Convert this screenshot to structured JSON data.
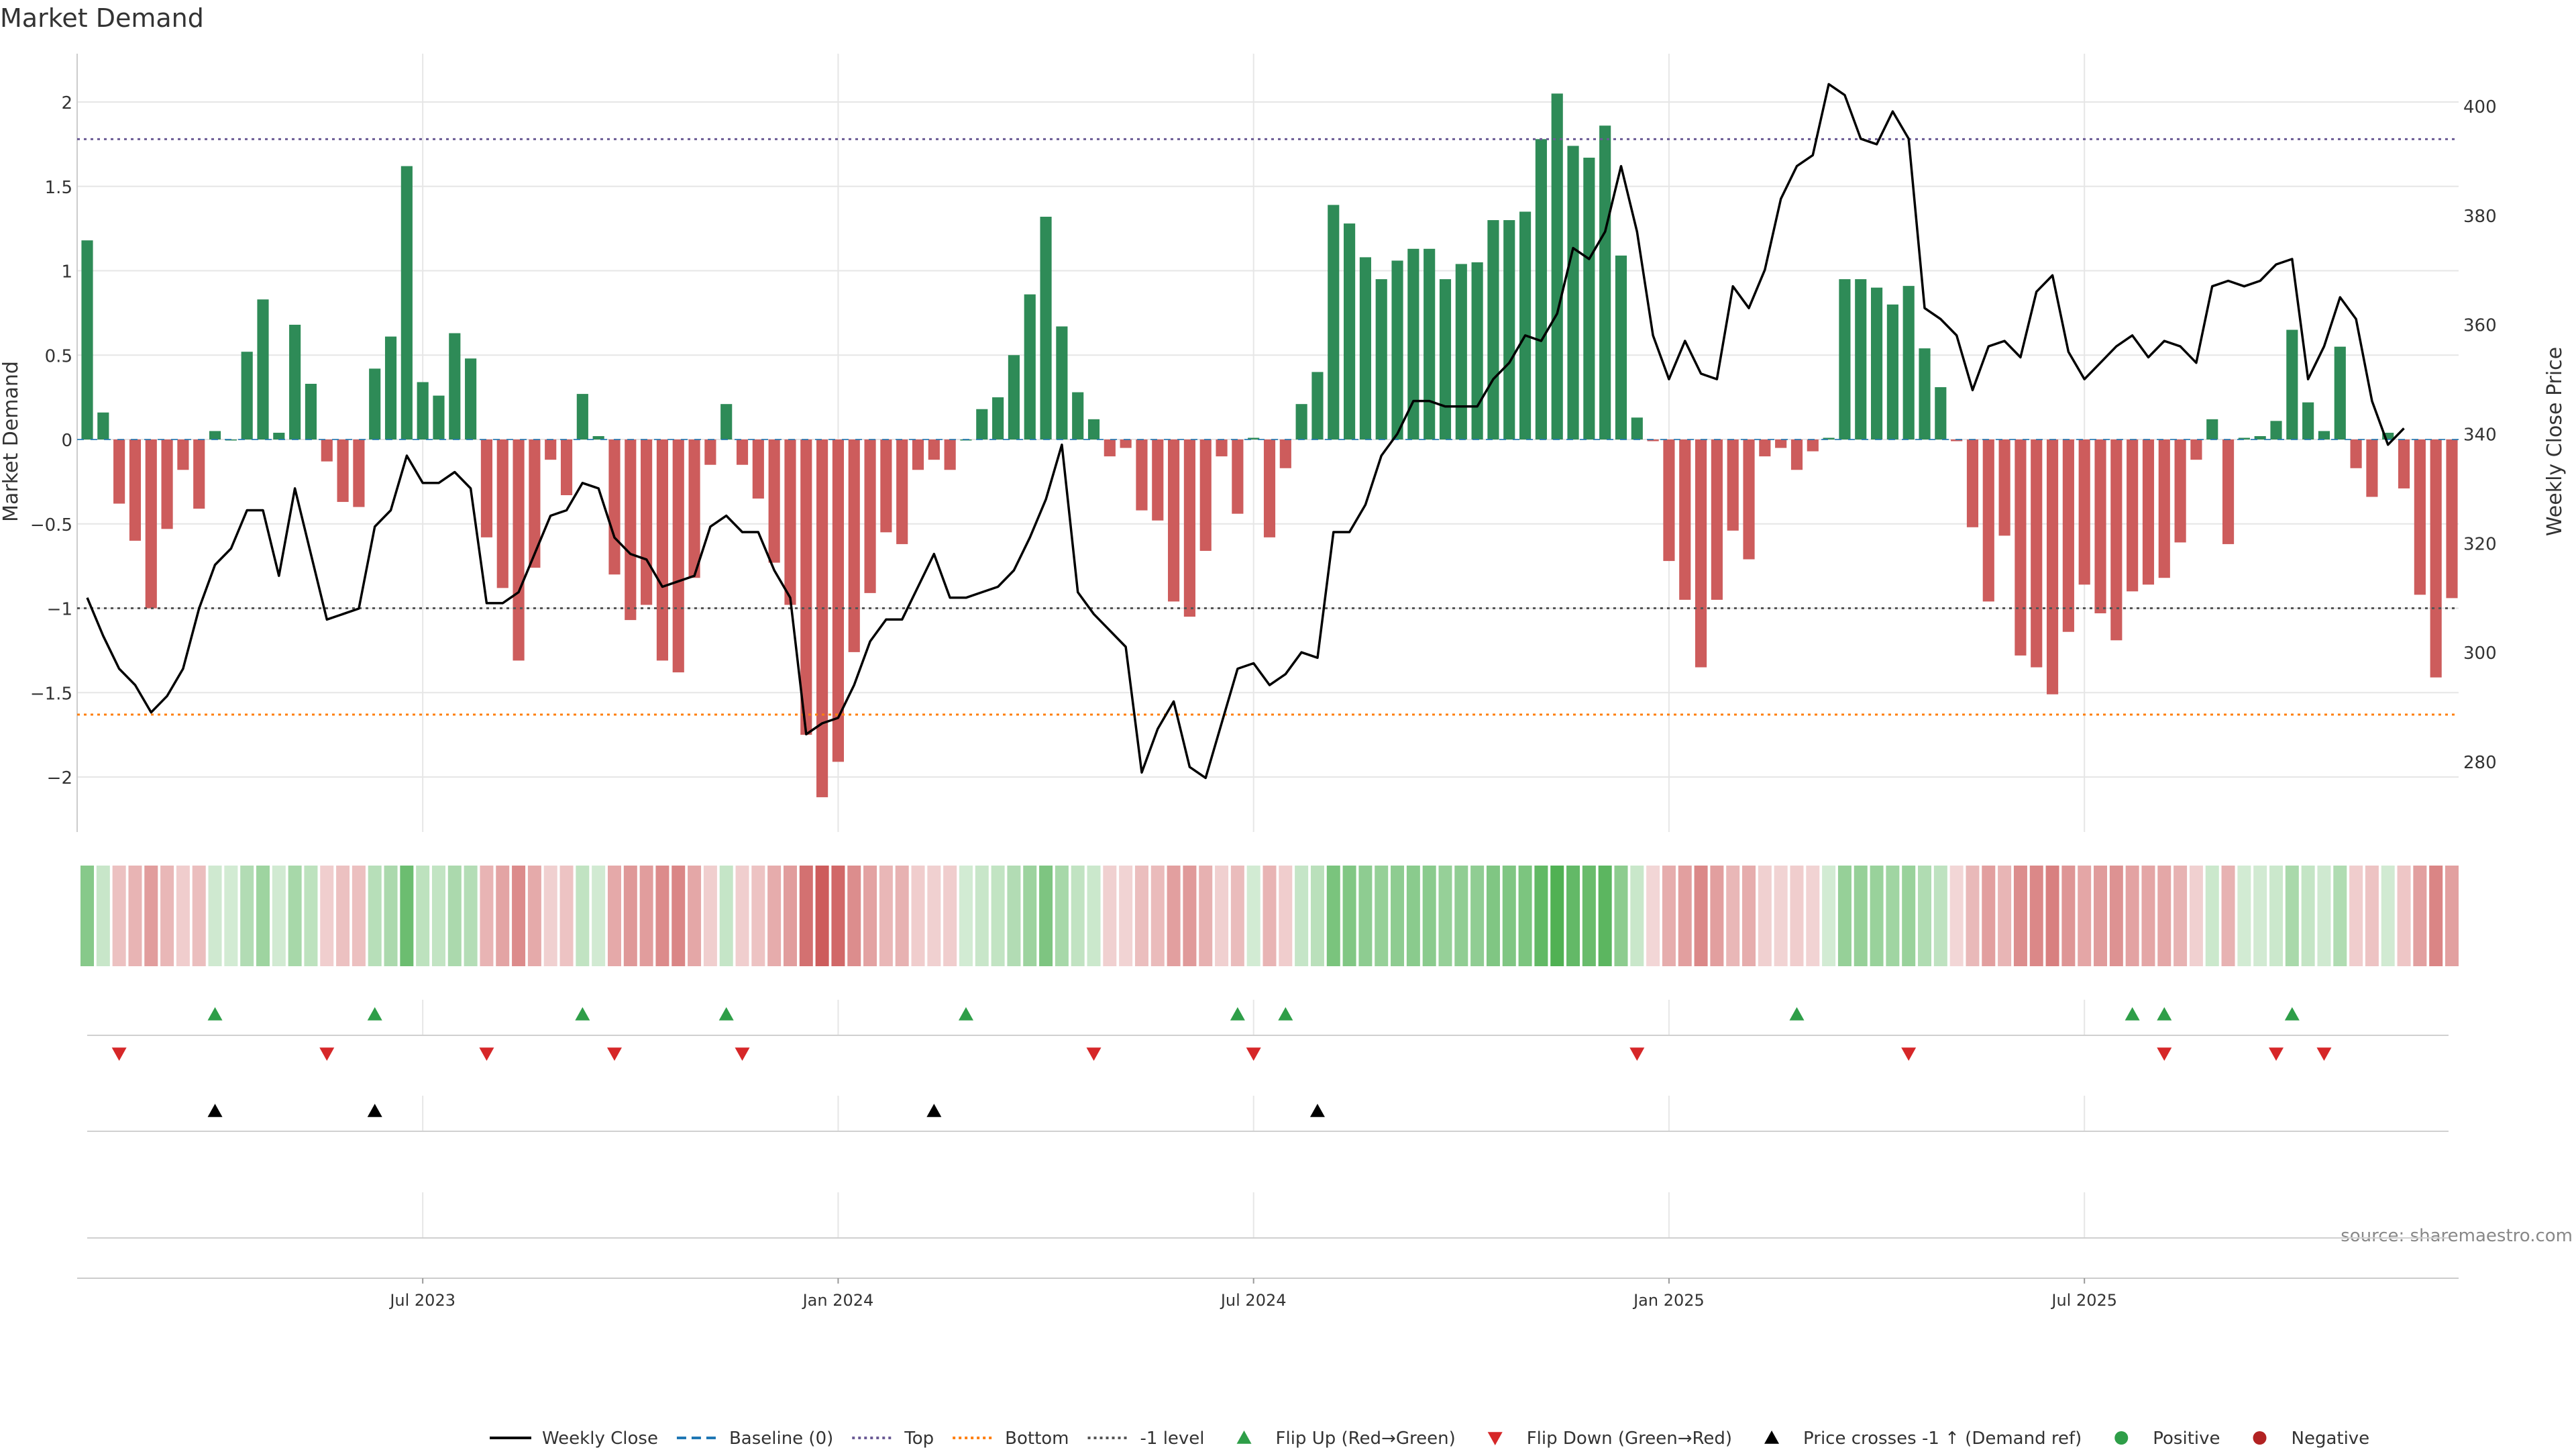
{
  "chart_data": {
    "type": "bar",
    "title": "Market Demand",
    "ylabel_left": "Market Demand",
    "ylabel_right": "Weekly Close Price",
    "ylim_left": [
      -2.3,
      2.3
    ],
    "ylim_right": [
      268,
      408
    ],
    "x_ticks": [
      {
        "label": "Jul 2023",
        "index": 21
      },
      {
        "label": "Jan 2024",
        "index": 47
      },
      {
        "label": "Jul 2024",
        "index": 73
      },
      {
        "label": "Jan 2025",
        "index": 99
      },
      {
        "label": "Jul 2025",
        "index": 125
      }
    ],
    "y_ticks_left": [
      {
        "label": "−2",
        "value": -2
      },
      {
        "label": "−1.5",
        "value": -1.5
      },
      {
        "label": "−1",
        "value": -1
      },
      {
        "label": "−0.5",
        "value": -0.5
      },
      {
        "label": "0",
        "value": 0
      },
      {
        "label": "0.5",
        "value": 0.5
      },
      {
        "label": "1",
        "value": 1
      },
      {
        "label": "1.5",
        "value": 1.5
      },
      {
        "label": "2",
        "value": 2
      }
    ],
    "y_ticks_right": [
      {
        "label": "280",
        "value": 280
      },
      {
        "label": "300",
        "value": 300
      },
      {
        "label": "320",
        "value": 320
      },
      {
        "label": "340",
        "value": 340
      },
      {
        "label": "360",
        "value": 360
      },
      {
        "label": "380",
        "value": 380
      },
      {
        "label": "400",
        "value": 400
      }
    ],
    "levels": {
      "top": 1.78,
      "bottom": -1.63,
      "minus_one": -1.0
    },
    "demand": [
      1.18,
      0.16,
      -0.38,
      -0.6,
      -1.0,
      -0.53,
      -0.18,
      -0.41,
      0.05,
      0,
      0.52,
      0.83,
      0.04,
      0.68,
      0.33,
      -0.13,
      -0.37,
      -0.4,
      0.42,
      0.61,
      1.62,
      0.34,
      0.26,
      0.63,
      0.48,
      -0.58,
      -0.88,
      -1.31,
      -0.76,
      -0.12,
      -0.33,
      0.27,
      0.02,
      -0.8,
      -1.07,
      -0.98,
      -1.31,
      -1.38,
      -0.82,
      -0.15,
      0.21,
      -0.15,
      -0.35,
      -0.73,
      -0.98,
      -1.75,
      -2.12,
      -1.91,
      -1.26,
      -0.91,
      -0.55,
      -0.62,
      -0.18,
      -0.12,
      -0.18,
      0,
      0.18,
      0.25,
      0.5,
      0.86,
      1.32,
      0.67,
      0.28,
      0.12,
      -0.1,
      -0.05,
      -0.42,
      -0.48,
      -0.96,
      -1.05,
      -0.66,
      -0.1,
      -0.44,
      0.01,
      -0.58,
      -0.17,
      0.21,
      0.4,
      1.39,
      1.28,
      1.08,
      0.95,
      1.06,
      1.13,
      1.13,
      0.95,
      1.04,
      1.05,
      1.3,
      1.3,
      1.35,
      1.78,
      2.05,
      1.74,
      1.67,
      1.86,
      1.09,
      0.13,
      -0.01,
      -0.72,
      -0.95,
      -1.35,
      -0.95,
      -0.54,
      -0.71,
      -0.1,
      -0.05,
      -0.18,
      -0.07,
      0.01,
      0.95,
      0.95,
      0.9,
      0.8,
      0.91,
      0.54,
      0.31,
      -0.01,
      -0.52,
      -0.96,
      -0.57,
      -1.28,
      -1.35,
      -1.51,
      -1.14,
      -0.86,
      -1.03,
      -1.19,
      -0.9,
      -0.86,
      -0.82,
      -0.61,
      -0.12,
      0.12,
      -0.62,
      0.01,
      0.02,
      0.11,
      0.65,
      0.22,
      0.05,
      0.55,
      -0.17,
      -0.34,
      0.04,
      -0.29,
      -0.92,
      -1.41,
      -0.94
    ],
    "close": [
      310,
      303,
      297,
      294,
      289,
      292,
      297,
      308,
      316,
      319,
      326,
      326,
      314,
      330,
      318,
      306,
      307,
      308,
      323,
      326,
      336,
      331,
      331,
      333,
      330,
      309,
      309,
      311,
      318,
      325,
      326,
      331,
      330,
      321,
      318,
      317,
      312,
      313,
      314,
      323,
      325,
      322,
      322,
      315,
      310,
      285,
      287,
      288,
      294,
      302,
      306,
      306,
      312,
      318,
      310,
      310,
      311,
      312,
      315,
      321,
      328,
      338,
      311,
      307,
      304,
      301,
      278,
      286,
      291,
      279,
      277,
      287,
      297,
      298,
      294,
      296,
      300,
      299,
      322,
      322,
      327,
      336,
      340,
      346,
      346,
      345,
      345,
      345,
      350,
      353,
      358,
      357,
      362,
      374,
      372,
      377,
      389,
      377,
      358,
      350,
      357,
      351,
      350,
      367,
      363,
      370,
      383,
      389,
      391,
      404,
      402,
      394,
      393,
      399,
      394,
      363,
      361,
      358,
      348,
      356,
      357,
      354,
      366,
      369,
      355,
      350,
      353,
      356,
      358,
      354,
      357,
      356,
      353,
      367,
      368,
      367,
      368,
      371,
      372,
      350,
      356,
      365,
      361,
      346,
      338,
      341
    ],
    "heat_strip": {
      "positive_color": "#4CAF50",
      "negative_color": "#CD5C5C"
    },
    "events": {
      "flip_up": [
        8,
        18,
        31,
        40,
        55,
        72,
        75,
        107,
        128,
        130,
        138
      ],
      "flip_down": [
        2,
        15,
        25,
        33,
        41,
        63,
        73,
        97,
        114,
        130,
        137,
        140
      ],
      "price_cross": [
        8,
        18,
        53,
        77
      ]
    },
    "legend": [
      {
        "label": "Weekly Close",
        "symbol": "line-solid",
        "color": "#000000"
      },
      {
        "label": "Baseline (0)",
        "symbol": "line-dashed",
        "color": "#1f77b4"
      },
      {
        "label": "Top",
        "symbol": "line-dotted",
        "color": "#6b5b95"
      },
      {
        "label": "Bottom",
        "symbol": "line-dotted",
        "color": "#ff7f0e"
      },
      {
        "label": "-1 level",
        "symbol": "line-dotted",
        "color": "#555555"
      },
      {
        "label": "Flip Up (Red→Green)",
        "symbol": "triangle-up",
        "color": "#2e9e48"
      },
      {
        "label": "Flip Down (Green→Red)",
        "symbol": "triangle-down",
        "color": "#d62728"
      },
      {
        "label": "Price crosses -1 ↑ (Demand ref)",
        "symbol": "triangle-up",
        "color": "#000000"
      },
      {
        "label": "Positive",
        "symbol": "circle",
        "color": "#2e9e48"
      },
      {
        "label": "Negative",
        "symbol": "circle",
        "color": "#b22222"
      }
    ],
    "source_note": "source: sharemaestro.com"
  },
  "colors": {
    "positive_bar": "#2E8B57",
    "negative_bar": "#CD5C5C",
    "grid": "#e6e6e6",
    "axis": "#cccccc"
  }
}
